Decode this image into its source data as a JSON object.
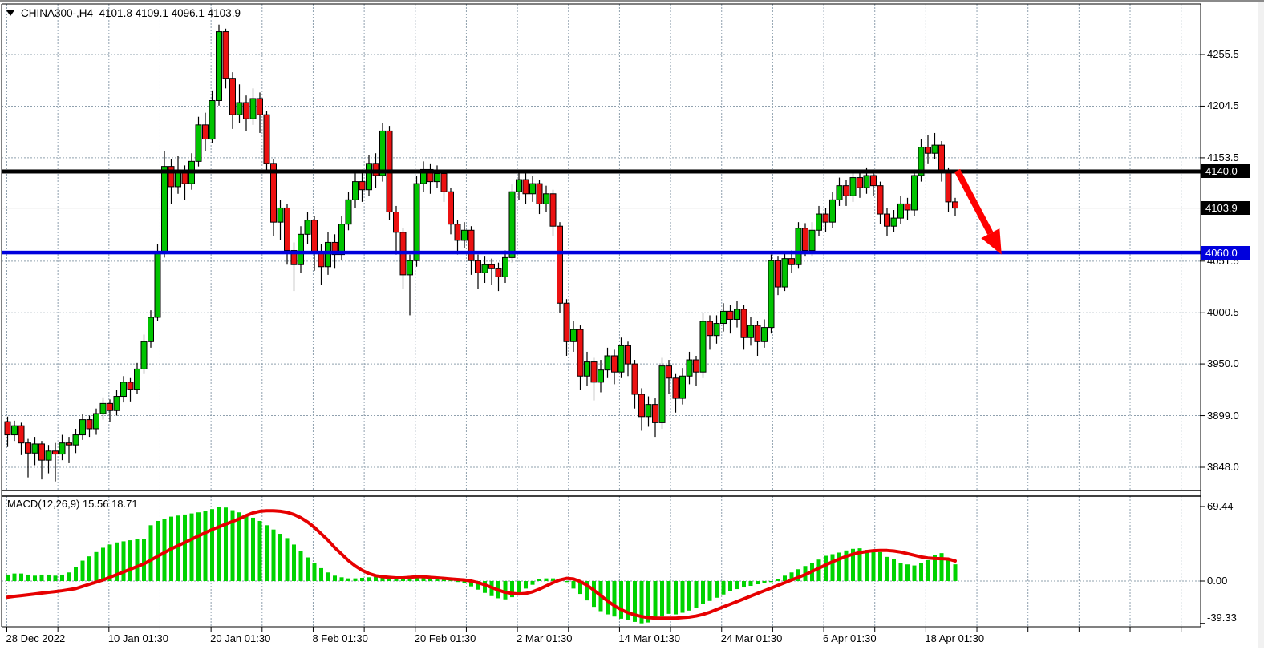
{
  "header": {
    "line": "CHINA300-,H4  4101.8 4109.1 4096.1 4103.9",
    "symbol": "CHINA300-",
    "timeframe": "H4",
    "open": "4101.8",
    "high": "4109.1",
    "low": "4096.1",
    "close": "4103.9"
  },
  "indicator": {
    "label": "MACD(12,26,9) 15.56 18.71"
  },
  "price_axis": {
    "ticks": [
      {
        "label": "4255.5",
        "value": 4255.5
      },
      {
        "label": "4204.5",
        "value": 4204.5
      },
      {
        "label": "4153.5",
        "value": 4153.5
      },
      {
        "label": "4051.5",
        "value": 4051.5
      },
      {
        "label": "4000.5",
        "value": 4000.5
      },
      {
        "label": "3950.0",
        "value": 3950.0
      },
      {
        "label": "3899.0",
        "value": 3899.0
      },
      {
        "label": "3848.0",
        "value": 3848.0
      }
    ],
    "price_labels": [
      {
        "label": "4140.0",
        "value": 4140.0,
        "bg": "#000000",
        "fg": "#ffffff"
      },
      {
        "label": "4103.9",
        "value": 4103.9,
        "bg": "#000000",
        "fg": "#ffffff"
      },
      {
        "label": "4060.0",
        "value": 4060.0,
        "bg": "#0000dd",
        "fg": "#ffffff"
      }
    ]
  },
  "macd_axis": {
    "ticks": [
      {
        "label": "69.44",
        "value": 69.44
      },
      {
        "label": "0.00",
        "value": 0
      },
      {
        "label": "-39.33",
        "value": -39.33
      }
    ]
  },
  "time_axis": {
    "labels": [
      {
        "label": "28 Dec 2022",
        "grid_index": 0
      },
      {
        "label": "10 Jan 01:30",
        "grid_index": 2
      },
      {
        "label": "20 Jan 01:30",
        "grid_index": 4
      },
      {
        "label": "8 Feb 01:30",
        "grid_index": 6
      },
      {
        "label": "20 Feb 01:30",
        "grid_index": 8
      },
      {
        "label": "2 Mar 01:30",
        "grid_index": 10
      },
      {
        "label": "14 Mar 01:30",
        "grid_index": 12
      },
      {
        "label": "24 Mar 01:30",
        "grid_index": 14
      },
      {
        "label": "6 Apr 01:30",
        "grid_index": 16
      },
      {
        "label": "18 Apr 01:30",
        "grid_index": 18
      }
    ]
  },
  "colors": {
    "bull": "#00c400",
    "bear": "#ec1111",
    "wick": "#000000",
    "grid": "#8fa0ae",
    "macd_hist": "#00d300",
    "macd_signal": "#e60000",
    "level_black": "#000000",
    "level_blue": "#0000dd",
    "arrow": "#ff0000",
    "current_price_line": "#b4b4b4",
    "border": "#000000"
  },
  "chart_data": {
    "type": "candlestick",
    "title": "CHINA300-,H4",
    "current_ohlc": {
      "open": 4101.8,
      "high": 4109.1,
      "low": 4096.1,
      "close": 4103.9
    },
    "current_price": 4103.9,
    "y_axis_ticks": [
      4255.5,
      4204.5,
      4153.5,
      4051.5,
      4000.5,
      3950.0,
      3899.0,
      3848.0
    ],
    "x_tick_labels": [
      "28 Dec 2022",
      "10 Jan 01:30",
      "20 Jan 01:30",
      "8 Feb 01:30",
      "20 Feb 01:30",
      "2 Mar 01:30",
      "14 Mar 01:30",
      "24 Mar 01:30",
      "6 Apr 01:30",
      "18 Apr 01:30"
    ],
    "horizontal_levels": [
      {
        "price": 4140.0,
        "color": "#000000",
        "thickness": 5
      },
      {
        "price": 4060.0,
        "color": "#0000dd",
        "thickness": 4.5
      }
    ],
    "arrow_annotation": {
      "from": {
        "bar": 139.3,
        "price": 4141
      },
      "to": {
        "bar": 145.8,
        "price": 4058
      }
    },
    "candles": [
      [
        3893,
        3898,
        3868,
        3880
      ],
      [
        3880,
        3894,
        3874,
        3889
      ],
      [
        3889,
        3892,
        3860,
        3872
      ],
      [
        3872,
        3876,
        3838,
        3862
      ],
      [
        3862,
        3878,
        3850,
        3871
      ],
      [
        3871,
        3874,
        3836,
        3855
      ],
      [
        3855,
        3870,
        3842,
        3864
      ],
      [
        3864,
        3872,
        3834,
        3861
      ],
      [
        3861,
        3880,
        3855,
        3872
      ],
      [
        3872,
        3878,
        3852,
        3870
      ],
      [
        3870,
        3886,
        3862,
        3880
      ],
      [
        3880,
        3901,
        3875,
        3895
      ],
      [
        3895,
        3899,
        3878,
        3886
      ],
      [
        3886,
        3906,
        3880,
        3901
      ],
      [
        3901,
        3917,
        3895,
        3911
      ],
      [
        3911,
        3915,
        3893,
        3904
      ],
      [
        3904,
        3924,
        3899,
        3918
      ],
      [
        3918,
        3938,
        3912,
        3932
      ],
      [
        3932,
        3936,
        3913,
        3925
      ],
      [
        3925,
        3951,
        3920,
        3945
      ],
      [
        3945,
        3979,
        3940,
        3972
      ],
      [
        3972,
        4003,
        3966,
        3996
      ],
      [
        3996,
        4068,
        3992,
        4060
      ],
      [
        4060,
        4160,
        4055,
        4145
      ],
      [
        4145,
        4152,
        4108,
        4125
      ],
      [
        4125,
        4155,
        4118,
        4140
      ],
      [
        4140,
        4146,
        4112,
        4128
      ],
      [
        4128,
        4158,
        4122,
        4150
      ],
      [
        4150,
        4194,
        4145,
        4186
      ],
      [
        4186,
        4198,
        4160,
        4172
      ],
      [
        4172,
        4220,
        4168,
        4210
      ],
      [
        4210,
        4285,
        4205,
        4278
      ],
      [
        4278,
        4281,
        4222,
        4232
      ],
      [
        4232,
        4238,
        4182,
        4196
      ],
      [
        4196,
        4226,
        4188,
        4208
      ],
      [
        4208,
        4215,
        4180,
        4192
      ],
      [
        4192,
        4222,
        4186,
        4212
      ],
      [
        4212,
        4218,
        4178,
        4196
      ],
      [
        4196,
        4200,
        4140,
        4148
      ],
      [
        4148,
        4152,
        4076,
        4090
      ],
      [
        4090,
        4112,
        4072,
        4104
      ],
      [
        4104,
        4108,
        4048,
        4062
      ],
      [
        4062,
        4070,
        4022,
        4048
      ],
      [
        4048,
        4086,
        4040,
        4078
      ],
      [
        4078,
        4100,
        4068,
        4092
      ],
      [
        4092,
        4096,
        4042,
        4060
      ],
      [
        4060,
        4068,
        4028,
        4046
      ],
      [
        4046,
        4080,
        4038,
        4070
      ],
      [
        4070,
        4078,
        4044,
        4058
      ],
      [
        4058,
        4096,
        4052,
        4088
      ],
      [
        4088,
        4120,
        4082,
        4112
      ],
      [
        4112,
        4138,
        4104,
        4130
      ],
      [
        4130,
        4142,
        4110,
        4122
      ],
      [
        4122,
        4156,
        4116,
        4148
      ],
      [
        4148,
        4158,
        4124,
        4136
      ],
      [
        4136,
        4188,
        4130,
        4180
      ],
      [
        4180,
        4185,
        4092,
        4100
      ],
      [
        4100,
        4106,
        4058,
        4080
      ],
      [
        4080,
        4084,
        4024,
        4038
      ],
      [
        4038,
        4058,
        3998,
        4052
      ],
      [
        4052,
        4136,
        4046,
        4128
      ],
      [
        4128,
        4150,
        4120,
        4142
      ],
      [
        4142,
        4148,
        4118,
        4130
      ],
      [
        4130,
        4146,
        4124,
        4138
      ],
      [
        4138,
        4142,
        4110,
        4120
      ],
      [
        4120,
        4124,
        4078,
        4088
      ],
      [
        4088,
        4092,
        4058,
        4072
      ],
      [
        4072,
        4090,
        4064,
        4082
      ],
      [
        4082,
        4086,
        4038,
        4052
      ],
      [
        4052,
        4058,
        4024,
        4040
      ],
      [
        4040,
        4056,
        4030,
        4048
      ],
      [
        4048,
        4054,
        4028,
        4044
      ],
      [
        4044,
        4050,
        4022,
        4036
      ],
      [
        4036,
        4062,
        4030,
        4055
      ],
      [
        4055,
        4128,
        4050,
        4120
      ],
      [
        4120,
        4140,
        4112,
        4132
      ],
      [
        4132,
        4138,
        4108,
        4118
      ],
      [
        4118,
        4136,
        4110,
        4128
      ],
      [
        4128,
        4132,
        4098,
        4108
      ],
      [
        4108,
        4126,
        4100,
        4118
      ],
      [
        4118,
        4122,
        4076,
        4086
      ],
      [
        4086,
        4090,
        4000,
        4010
      ],
      [
        4010,
        4014,
        3958,
        3972
      ],
      [
        3972,
        3992,
        3962,
        3984
      ],
      [
        3984,
        3988,
        3924,
        3938
      ],
      [
        3938,
        3962,
        3928,
        3952
      ],
      [
        3952,
        3956,
        3914,
        3932
      ],
      [
        3932,
        3954,
        3922,
        3944
      ],
      [
        3944,
        3966,
        3936,
        3958
      ],
      [
        3958,
        3964,
        3930,
        3942
      ],
      [
        3942,
        3976,
        3936,
        3968
      ],
      [
        3968,
        3972,
        3938,
        3950
      ],
      [
        3950,
        3954,
        3906,
        3920
      ],
      [
        3920,
        3926,
        3884,
        3898
      ],
      [
        3898,
        3918,
        3888,
        3910
      ],
      [
        3910,
        3916,
        3878,
        3892
      ],
      [
        3892,
        3956,
        3886,
        3948
      ],
      [
        3948,
        3954,
        3920,
        3936
      ],
      [
        3936,
        3940,
        3902,
        3916
      ],
      [
        3916,
        3946,
        3910,
        3938
      ],
      [
        3938,
        3962,
        3930,
        3954
      ],
      [
        3954,
        3958,
        3928,
        3942
      ],
      [
        3942,
        4000,
        3936,
        3992
      ],
      [
        3992,
        3998,
        3964,
        3978
      ],
      [
        3978,
        3998,
        3970,
        3990
      ],
      [
        3990,
        4010,
        3982,
        4002
      ],
      [
        4002,
        4008,
        3980,
        3994
      ],
      [
        3994,
        4012,
        3986,
        4004
      ],
      [
        4004,
        4008,
        3964,
        3976
      ],
      [
        3976,
        3996,
        3968,
        3988
      ],
      [
        3988,
        3992,
        3958,
        3972
      ],
      [
        3972,
        3994,
        3966,
        3986
      ],
      [
        3986,
        4058,
        3980,
        4052
      ],
      [
        4052,
        4056,
        4018,
        4026
      ],
      [
        4026,
        4060,
        4022,
        4054
      ],
      [
        4054,
        4062,
        4040,
        4048
      ],
      [
        4048,
        4090,
        4044,
        4084
      ],
      [
        4084,
        4089,
        4056,
        4062
      ],
      [
        4062,
        4090,
        4056,
        4082
      ],
      [
        4082,
        4106,
        4076,
        4098
      ],
      [
        4098,
        4104,
        4080,
        4090
      ],
      [
        4090,
        4120,
        4084,
        4112
      ],
      [
        4112,
        4134,
        4106,
        4126
      ],
      [
        4126,
        4132,
        4106,
        4116
      ],
      [
        4116,
        4142,
        4110,
        4134
      ],
      [
        4134,
        4140,
        4114,
        4124
      ],
      [
        4124,
        4144,
        4118,
        4136
      ],
      [
        4136,
        4142,
        4116,
        4126
      ],
      [
        4126,
        4130,
        4088,
        4098
      ],
      [
        4098,
        4104,
        4076,
        4086
      ],
      [
        4086,
        4102,
        4080,
        4094
      ],
      [
        4094,
        4116,
        4088,
        4108
      ],
      [
        4108,
        4114,
        4092,
        4102
      ],
      [
        4102,
        4142,
        4096,
        4136
      ],
      [
        4136,
        4172,
        4130,
        4164
      ],
      [
        4164,
        4176,
        4148,
        4158
      ],
      [
        4158,
        4178,
        4152,
        4166
      ],
      [
        4166,
        4170,
        4130,
        4140
      ],
      [
        4140,
        4144,
        4100,
        4110
      ],
      [
        4110,
        4114,
        4096,
        4103.9
      ]
    ],
    "macd": {
      "label": "MACD(12,26,9)",
      "macd_value": 15.56,
      "signal_value": 18.71,
      "axis_max": 69.44,
      "axis_min": -39.33,
      "histogram": [
        6,
        7,
        7,
        6,
        5,
        6,
        6,
        5,
        6,
        8,
        13,
        19,
        23,
        27,
        31,
        34,
        36,
        37,
        38,
        39,
        39,
        52,
        56,
        58,
        60,
        61,
        62,
        63,
        64,
        65.5,
        67,
        69.4,
        68.5,
        66,
        64,
        62,
        59,
        56,
        52,
        48,
        44,
        40,
        34,
        28,
        22,
        17,
        12,
        8,
        5,
        3.5,
        2.5,
        2.5,
        3,
        3.5,
        4,
        4,
        3,
        2.5,
        3.5,
        4.5,
        5,
        4.5,
        3.5,
        2.5,
        1.5,
        0.8,
        -0.8,
        -2,
        -5,
        -8,
        -11,
        -14,
        -16,
        -17,
        -15,
        -11,
        -7,
        -3.5,
        1.5,
        2.5,
        2.5,
        1.5,
        -1,
        -7,
        -12,
        -18,
        -24,
        -28,
        -31,
        -33,
        -35,
        -36.5,
        -38,
        -39.3,
        -38.5,
        -36.5,
        -33,
        -30.5,
        -31,
        -29.5,
        -27.5,
        -25,
        -21.5,
        -18.5,
        -15.5,
        -12.5,
        -9.5,
        -7.5,
        -6,
        -4.5,
        -3,
        -2,
        -1,
        2,
        5,
        8,
        11,
        14,
        17,
        20,
        23.5,
        25,
        26.5,
        28.5,
        30,
        30.5,
        29,
        27.5,
        27,
        22.5,
        20.5,
        17,
        15.5,
        14.5,
        16.5,
        19.5,
        24.5,
        26,
        21,
        15.56
      ],
      "signal": [
        -15,
        -14.2,
        -13.5,
        -12.8,
        -12,
        -11.2,
        -10.5,
        -9.8,
        -9,
        -8,
        -7,
        -5,
        -3,
        -1,
        1,
        3.5,
        6,
        8.5,
        11,
        13.5,
        16,
        19.5,
        23,
        26.5,
        30,
        33,
        36,
        39,
        42,
        45,
        48,
        50.5,
        53,
        55.5,
        58,
        61,
        63.5,
        65,
        65.5,
        65.5,
        65,
        64,
        62,
        59,
        55,
        50,
        44,
        38,
        31,
        25,
        19,
        14,
        10,
        7,
        5,
        4,
        3.5,
        3,
        3,
        3.5,
        4,
        4,
        3.5,
        3,
        2.5,
        2,
        1.5,
        1,
        0,
        -1.5,
        -3.5,
        -6,
        -8.5,
        -10.5,
        -11.5,
        -12,
        -11.5,
        -10,
        -7.5,
        -4.5,
        -1.5,
        1,
        2.5,
        2,
        -0.5,
        -4,
        -8.5,
        -13.5,
        -18.5,
        -23,
        -26.5,
        -29.5,
        -31.5,
        -33,
        -34,
        -34.5,
        -34.5,
        -34.5,
        -34.5,
        -34,
        -33.5,
        -32.5,
        -31,
        -29,
        -26.5,
        -24,
        -21.5,
        -19,
        -16.5,
        -14,
        -11.5,
        -9,
        -6.5,
        -4,
        -1.5,
        1,
        3.5,
        6,
        9,
        12,
        15,
        18,
        20.5,
        23,
        25,
        26.5,
        27.5,
        28.3,
        28.5,
        28.5,
        28,
        27,
        25.5,
        24,
        22.5,
        21.5,
        21,
        20.8,
        20.5,
        18.71
      ]
    }
  }
}
